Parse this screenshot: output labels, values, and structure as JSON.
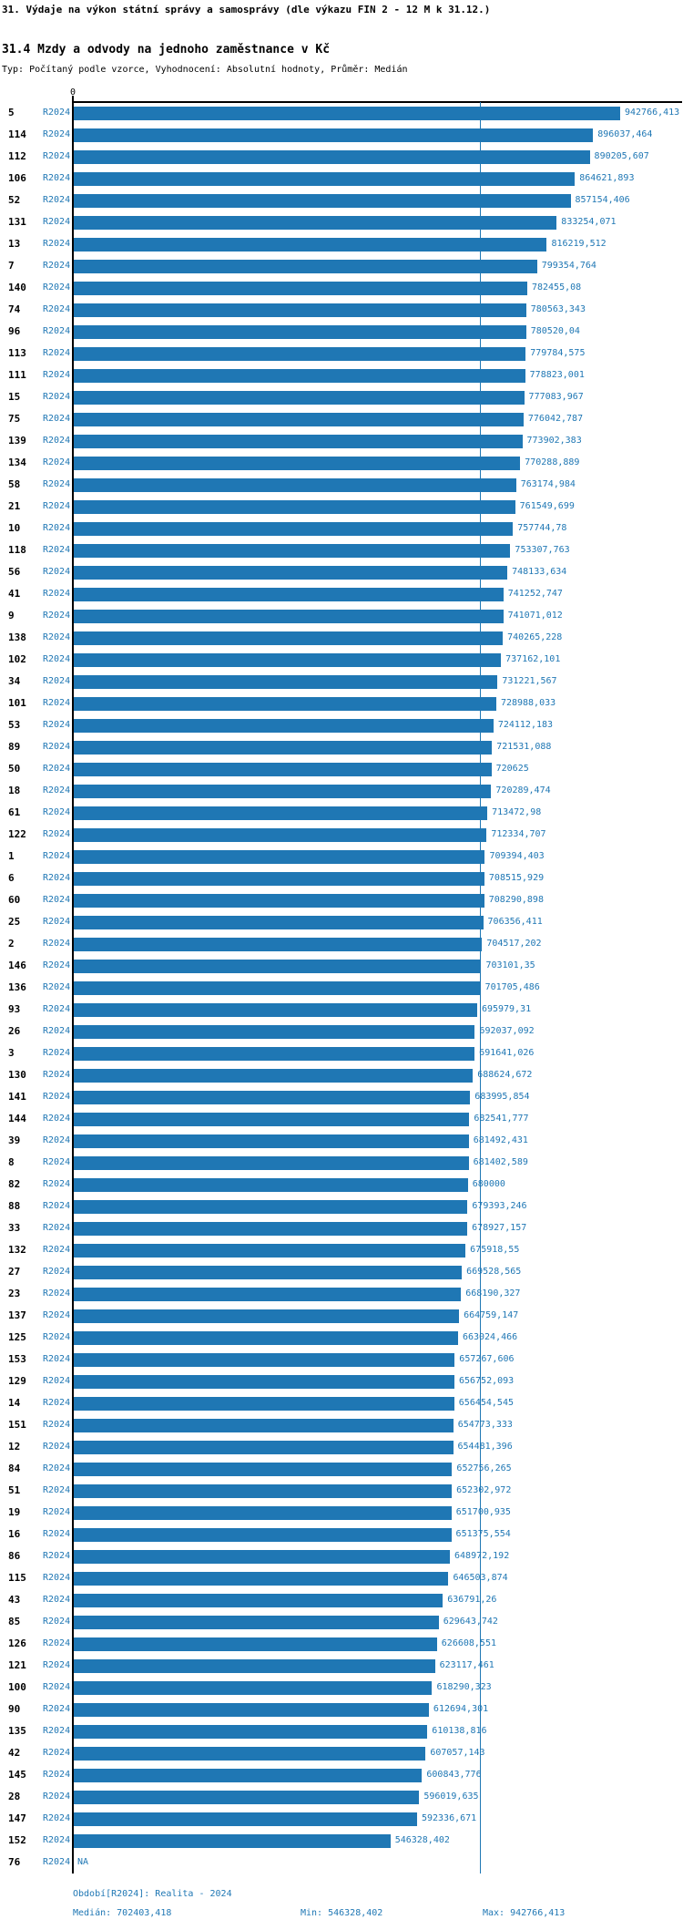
{
  "header": {
    "title1": "31. Výdaje na výkon státní správy a samosprávy (dle výkazu FIN 2 - 12 M k 31.12.)",
    "title2": "31.4 Mzdy a odvody na jednoho zaměstnance v Kč",
    "meta": "Typ: Počítaný podle vzorce, Vyhodnocení: Absolutní hodnoty, Průměr: Medián"
  },
  "footer": {
    "period": "Období[R2024]: Realita - 2024",
    "median": "Medián: 702403,418",
    "min": "Min: 546328,402",
    "max": "Max: 942766,413"
  },
  "chart_data": {
    "type": "bar",
    "orientation": "horizontal",
    "title": "31.4 Mzdy a odvody na jednoho zaměstnance v Kč",
    "series_label": "R2024",
    "axis_zero_label": "0",
    "colors": {
      "accent": "#1F77B4",
      "axis": "#000000"
    },
    "median_value": 702403.418,
    "min_value": 546328.402,
    "max_value": 942766.413,
    "xlim": [
      0,
      942766.413
    ],
    "rows": [
      {
        "label": "5",
        "value": 942766.413,
        "display": "942766,413"
      },
      {
        "label": "114",
        "value": 896037.464,
        "display": "896037,464"
      },
      {
        "label": "112",
        "value": 890205.607,
        "display": "890205,607"
      },
      {
        "label": "106",
        "value": 864621.893,
        "display": "864621,893"
      },
      {
        "label": "52",
        "value": 857154.406,
        "display": "857154,406"
      },
      {
        "label": "131",
        "value": 833254.071,
        "display": "833254,071"
      },
      {
        "label": "13",
        "value": 816219.512,
        "display": "816219,512"
      },
      {
        "label": "7",
        "value": 799354.764,
        "display": "799354,764"
      },
      {
        "label": "140",
        "value": 782455.08,
        "display": "782455,08"
      },
      {
        "label": "74",
        "value": 780563.343,
        "display": "780563,343"
      },
      {
        "label": "96",
        "value": 780520.04,
        "display": "780520,04"
      },
      {
        "label": "113",
        "value": 779784.575,
        "display": "779784,575"
      },
      {
        "label": "111",
        "value": 778823.001,
        "display": "778823,001"
      },
      {
        "label": "15",
        "value": 777083.967,
        "display": "777083,967"
      },
      {
        "label": "75",
        "value": 776042.787,
        "display": "776042,787"
      },
      {
        "label": "139",
        "value": 773902.383,
        "display": "773902,383"
      },
      {
        "label": "134",
        "value": 770288.889,
        "display": "770288,889"
      },
      {
        "label": "58",
        "value": 763174.984,
        "display": "763174,984"
      },
      {
        "label": "21",
        "value": 761549.699,
        "display": "761549,699"
      },
      {
        "label": "10",
        "value": 757744.78,
        "display": "757744,78"
      },
      {
        "label": "118",
        "value": 753307.763,
        "display": "753307,763"
      },
      {
        "label": "56",
        "value": 748133.634,
        "display": "748133,634"
      },
      {
        "label": "41",
        "value": 741252.747,
        "display": "741252,747"
      },
      {
        "label": "9",
        "value": 741071.012,
        "display": "741071,012"
      },
      {
        "label": "138",
        "value": 740265.228,
        "display": "740265,228"
      },
      {
        "label": "102",
        "value": 737162.101,
        "display": "737162,101"
      },
      {
        "label": "34",
        "value": 731221.567,
        "display": "731221,567"
      },
      {
        "label": "101",
        "value": 728988.033,
        "display": "728988,033"
      },
      {
        "label": "53",
        "value": 724112.183,
        "display": "724112,183"
      },
      {
        "label": "89",
        "value": 721531.088,
        "display": "721531,088"
      },
      {
        "label": "50",
        "value": 720625,
        "display": "720625"
      },
      {
        "label": "18",
        "value": 720289.474,
        "display": "720289,474"
      },
      {
        "label": "61",
        "value": 713472.98,
        "display": "713472,98"
      },
      {
        "label": "122",
        "value": 712334.707,
        "display": "712334,707"
      },
      {
        "label": "1",
        "value": 709394.403,
        "display": "709394,403"
      },
      {
        "label": "6",
        "value": 708515.929,
        "display": "708515,929"
      },
      {
        "label": "60",
        "value": 708290.898,
        "display": "708290,898"
      },
      {
        "label": "25",
        "value": 706356.411,
        "display": "706356,411"
      },
      {
        "label": "2",
        "value": 704517.202,
        "display": "704517,202"
      },
      {
        "label": "146",
        "value": 703101.35,
        "display": "703101,35"
      },
      {
        "label": "136",
        "value": 701705.486,
        "display": "701705,486"
      },
      {
        "label": "93",
        "value": 695979.31,
        "display": "695979,31"
      },
      {
        "label": "26",
        "value": 692037.092,
        "display": "692037,092"
      },
      {
        "label": "3",
        "value": 691641.026,
        "display": "691641,026"
      },
      {
        "label": "130",
        "value": 688624.672,
        "display": "688624,672"
      },
      {
        "label": "141",
        "value": 683995.854,
        "display": "683995,854"
      },
      {
        "label": "144",
        "value": 682541.777,
        "display": "682541,777"
      },
      {
        "label": "39",
        "value": 681492.431,
        "display": "681492,431"
      },
      {
        "label": "8",
        "value": 681402.589,
        "display": "681402,589"
      },
      {
        "label": "82",
        "value": 680000,
        "display": "680000"
      },
      {
        "label": "88",
        "value": 679393.246,
        "display": "679393,246"
      },
      {
        "label": "33",
        "value": 678927.157,
        "display": "678927,157"
      },
      {
        "label": "132",
        "value": 675918.55,
        "display": "675918,55"
      },
      {
        "label": "27",
        "value": 669528.565,
        "display": "669528,565"
      },
      {
        "label": "23",
        "value": 668190.327,
        "display": "668190,327"
      },
      {
        "label": "137",
        "value": 664759.147,
        "display": "664759,147"
      },
      {
        "label": "125",
        "value": 663024.466,
        "display": "663024,466"
      },
      {
        "label": "153",
        "value": 657267.606,
        "display": "657267,606"
      },
      {
        "label": "129",
        "value": 656752.093,
        "display": "656752,093"
      },
      {
        "label": "14",
        "value": 656454.545,
        "display": "656454,545"
      },
      {
        "label": "151",
        "value": 654773.333,
        "display": "654773,333"
      },
      {
        "label": "12",
        "value": 654481.396,
        "display": "654481,396"
      },
      {
        "label": "84",
        "value": 652756.265,
        "display": "652756,265"
      },
      {
        "label": "51",
        "value": 652302.972,
        "display": "652302,972"
      },
      {
        "label": "19",
        "value": 651700.935,
        "display": "651700,935"
      },
      {
        "label": "16",
        "value": 651375.554,
        "display": "651375,554"
      },
      {
        "label": "86",
        "value": 648972.192,
        "display": "648972,192"
      },
      {
        "label": "115",
        "value": 646503.874,
        "display": "646503,874"
      },
      {
        "label": "43",
        "value": 636791.26,
        "display": "636791,26"
      },
      {
        "label": "85",
        "value": 629643.742,
        "display": "629643,742"
      },
      {
        "label": "126",
        "value": 626608.551,
        "display": "626608,551"
      },
      {
        "label": "121",
        "value": 623117.461,
        "display": "623117,461"
      },
      {
        "label": "100",
        "value": 618290.323,
        "display": "618290,323"
      },
      {
        "label": "90",
        "value": 612694.301,
        "display": "612694,301"
      },
      {
        "label": "135",
        "value": 610138.816,
        "display": "610138,816"
      },
      {
        "label": "42",
        "value": 607057.143,
        "display": "607057,143"
      },
      {
        "label": "145",
        "value": 600843.776,
        "display": "600843,776"
      },
      {
        "label": "28",
        "value": 596019.635,
        "display": "596019,635"
      },
      {
        "label": "147",
        "value": 592336.671,
        "display": "592336,671"
      },
      {
        "label": "152",
        "value": 546328.402,
        "display": "546328,402"
      },
      {
        "label": "76",
        "value": null,
        "display": "NA"
      }
    ]
  }
}
